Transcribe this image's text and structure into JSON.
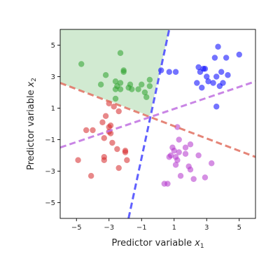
{
  "chart_data": {
    "type": "scatter",
    "title": "",
    "xlabel": "Predictor variable",
    "xlabel_symbol": "x",
    "xlabel_subscript": "1",
    "ylabel": "Predictor variable",
    "ylabel_symbol": "x",
    "ylabel_subscript": "2",
    "xlim": [
      -6,
      6
    ],
    "ylim": [
      -6,
      6
    ],
    "x_ticks": [
      -5,
      -3,
      -1,
      1,
      3,
      5
    ],
    "y_ticks": [
      -5,
      -3,
      -1,
      1,
      3,
      5
    ],
    "x_tick_labels": [
      "−5",
      "−3",
      "−1",
      "1",
      "3",
      "5"
    ],
    "y_tick_labels": [
      "−5",
      "−3",
      "−1",
      "1",
      "3",
      "5"
    ],
    "grid": false,
    "legend": "none",
    "series": [
      {
        "color": "#2ca02c",
        "points": [
          [
            -4.7,
            3.8
          ],
          [
            -3.2,
            3.1
          ],
          [
            -2.3,
            4.5
          ],
          [
            -2.3,
            2.6
          ],
          [
            -2.1,
            3.4
          ],
          [
            -2.1,
            3.3
          ],
          [
            -2.3,
            2.2
          ],
          [
            -2.6,
            2.7
          ],
          [
            -2.5,
            2.4
          ],
          [
            -2.6,
            2.2
          ],
          [
            -1.8,
            2.3
          ],
          [
            -1.6,
            2.2
          ],
          [
            -1.7,
            2.5
          ],
          [
            -1.2,
            2.2
          ],
          [
            -0.8,
            2.0
          ],
          [
            -0.5,
            2.8
          ],
          [
            -0.5,
            2.4
          ],
          [
            -1.0,
            2.5
          ],
          [
            -2.6,
            1.6
          ],
          [
            -3.5,
            2.5
          ],
          [
            -0.7,
            1.7
          ]
        ]
      },
      {
        "color": "#0000ff",
        "points": [
          [
            0.2,
            3.4
          ],
          [
            0.7,
            3.3
          ],
          [
            1.1,
            3.3
          ],
          [
            2.9,
            3.5
          ],
          [
            2.6,
            3.3
          ],
          [
            2.5,
            3.6
          ],
          [
            3.5,
            4.2
          ],
          [
            3.7,
            4.9
          ],
          [
            4.2,
            4.2
          ],
          [
            5.0,
            4.4
          ],
          [
            3.6,
            3.0
          ],
          [
            3.9,
            3.3
          ],
          [
            3.0,
            3.0
          ],
          [
            3.1,
            2.7
          ],
          [
            3.4,
            2.6
          ],
          [
            2.7,
            2.3
          ],
          [
            3.8,
            2.4
          ],
          [
            4.3,
            3.1
          ],
          [
            4.0,
            2.6
          ],
          [
            2.4,
            2.6
          ],
          [
            3.6,
            1.1
          ],
          [
            2.8,
            3.5
          ]
        ]
      },
      {
        "color": "#d62728",
        "points": [
          [
            -3.0,
            1.3
          ],
          [
            -2.7,
            1.1
          ],
          [
            -2.4,
            0.8
          ],
          [
            -3.2,
            0.5
          ],
          [
            -3.0,
            -0.2
          ],
          [
            -3.0,
            -0.5
          ],
          [
            -2.9,
            -0.6
          ],
          [
            -3.4,
            0.1
          ],
          [
            -4.0,
            -0.4
          ],
          [
            -4.4,
            -0.4
          ],
          [
            -3.3,
            -0.9
          ],
          [
            -2.8,
            -1.2
          ],
          [
            -2.5,
            -1.6
          ],
          [
            -2.0,
            -1.7
          ],
          [
            -2.0,
            -1.8
          ],
          [
            -2.4,
            -2.8
          ],
          [
            -1.9,
            -2.3
          ],
          [
            -3.3,
            -2.1
          ],
          [
            -3.3,
            -2.3
          ],
          [
            -4.9,
            -2.3
          ],
          [
            -4.1,
            -3.3
          ],
          [
            -2.9,
            -0.1
          ]
        ]
      },
      {
        "color": "#b233cc",
        "points": [
          [
            1.2,
            -0.2
          ],
          [
            1.3,
            -1.0
          ],
          [
            2.0,
            -1.3
          ],
          [
            0.9,
            -1.5
          ],
          [
            1.0,
            -1.7
          ],
          [
            0.7,
            -2.1
          ],
          [
            0.8,
            -2.0
          ],
          [
            1.1,
            -2.1
          ],
          [
            1.2,
            -2.3
          ],
          [
            1.1,
            -2.6
          ],
          [
            1.7,
            -1.9
          ],
          [
            2.5,
            -2.0
          ],
          [
            1.7,
            -1.5
          ],
          [
            1.9,
            -2.7
          ],
          [
            3.3,
            -2.5
          ],
          [
            2.0,
            -2.9
          ],
          [
            1.4,
            -3.3
          ],
          [
            2.2,
            -3.5
          ],
          [
            2.9,
            -3.4
          ],
          [
            0.4,
            -3.8
          ],
          [
            0.6,
            -3.8
          ],
          [
            1.3,
            -1.8
          ]
        ]
      }
    ],
    "boundaries": [
      {
        "color": "#4444ff",
        "style": "dashed",
        "from": [
          -1.8,
          -6.0
        ],
        "to": [
          0.7,
          6.0
        ]
      },
      {
        "color": "#e07060",
        "style": "dashed",
        "from": [
          -6.0,
          2.6
        ],
        "to": [
          6.0,
          -2.1
        ]
      },
      {
        "color": "#c070e0",
        "style": "dashed",
        "from": [
          -6.0,
          -1.5
        ],
        "to": [
          6.0,
          2.7
        ]
      }
    ],
    "shaded_region": {
      "color": "#2ca02c",
      "opacity": 0.22,
      "polygon": [
        [
          -6.0,
          6.0
        ],
        [
          0.7,
          6.0
        ],
        [
          -0.5,
          0.5
        ],
        [
          -6.0,
          2.6
        ]
      ]
    }
  }
}
